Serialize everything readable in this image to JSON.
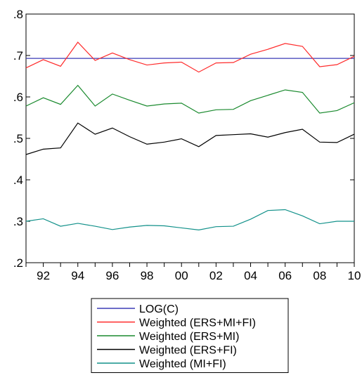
{
  "chart_data": {
    "type": "line",
    "title": "",
    "xlabel": "",
    "ylabel": "",
    "x": [
      1991,
      1992,
      1993,
      1994,
      1995,
      1996,
      1997,
      1998,
      1999,
      2000,
      2001,
      2002,
      2003,
      2004,
      2005,
      2006,
      2007,
      2008,
      2009,
      2010
    ],
    "x_tick_values": [
      1992,
      1994,
      1996,
      1998,
      2000,
      2002,
      2004,
      2006,
      2008,
      2010
    ],
    "x_tick_labels": [
      "92",
      "94",
      "96",
      "98",
      "00",
      "02",
      "04",
      "06",
      "08",
      "10"
    ],
    "xlim": [
      1991,
      2010
    ],
    "ylim": [
      0.2,
      0.8
    ],
    "y_tick_values": [
      0.2,
      0.3,
      0.4,
      0.5,
      0.6,
      0.7,
      0.8
    ],
    "y_tick_labels": [
      ".2",
      ".3",
      ".4",
      ".5",
      ".6",
      ".7",
      ".8"
    ],
    "grid": false,
    "legend_position": "bottom-center",
    "series": [
      {
        "name": "LOG(C)",
        "color": "#3b3bb5",
        "values": [
          0.693,
          0.693,
          0.693,
          0.693,
          0.693,
          0.693,
          0.693,
          0.693,
          0.693,
          0.693,
          0.693,
          0.693,
          0.693,
          0.693,
          0.693,
          0.693,
          0.693,
          0.693,
          0.693,
          0.693
        ]
      },
      {
        "name": "Weighted (ERS+MI+FI)",
        "color": "#ff2b2b",
        "values": [
          0.67,
          0.69,
          0.674,
          0.732,
          0.688,
          0.706,
          0.69,
          0.677,
          0.682,
          0.684,
          0.66,
          0.682,
          0.683,
          0.703,
          0.715,
          0.729,
          0.722,
          0.673,
          0.678,
          0.698
        ]
      },
      {
        "name": "Weighted (ERS+MI)",
        "color": "#1a8a2e",
        "values": [
          0.578,
          0.598,
          0.582,
          0.628,
          0.578,
          0.607,
          0.592,
          0.578,
          0.583,
          0.585,
          0.561,
          0.569,
          0.57,
          0.591,
          0.604,
          0.617,
          0.611,
          0.561,
          0.567,
          0.586
        ]
      },
      {
        "name": "Weighted (ERS+FI)",
        "color": "#000000",
        "values": [
          0.461,
          0.474,
          0.477,
          0.537,
          0.51,
          0.525,
          0.504,
          0.486,
          0.491,
          0.499,
          0.48,
          0.507,
          0.509,
          0.511,
          0.503,
          0.514,
          0.522,
          0.491,
          0.49,
          0.51
        ]
      },
      {
        "name": "Weighted (MI+FI)",
        "color": "#12918a",
        "values": [
          0.3,
          0.306,
          0.288,
          0.295,
          0.288,
          0.28,
          0.286,
          0.29,
          0.289,
          0.284,
          0.279,
          0.287,
          0.288,
          0.305,
          0.326,
          0.328,
          0.313,
          0.294,
          0.3,
          0.3
        ]
      }
    ]
  }
}
